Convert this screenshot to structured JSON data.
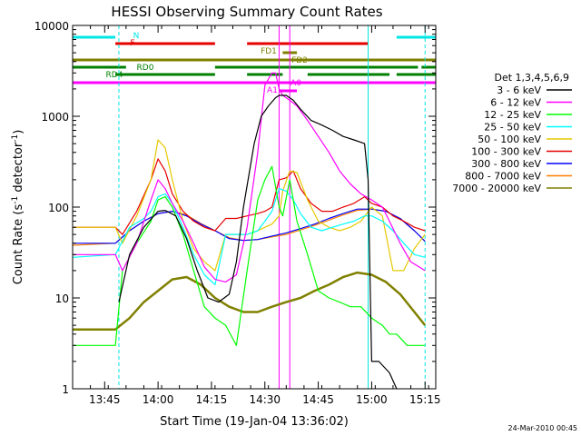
{
  "chart_data": {
    "type": "line",
    "title": "HESSI Observing Summary Count Rates",
    "xlabel": "Start Time (19-Jan-04 13:36:02)",
    "ylabel": "Count Rate (s⁻¹ detector⁻¹)",
    "ylabel_parts": {
      "main": "Count Rate (s",
      "exp1": "-1",
      "mid": " detector",
      "exp2": "-1",
      "end": ")"
    },
    "yscale": "log",
    "xlim": [
      "13:36",
      "15:18"
    ],
    "ylim": [
      1,
      10000
    ],
    "x_tick_labels": [
      "13:45",
      "14:00",
      "14:15",
      "14:30",
      "14:45",
      "15:00",
      "15:15"
    ],
    "y_tick_labels": [
      "1",
      "10",
      "100",
      "1000",
      "10000"
    ],
    "footer": "24-Mar-2010 00:45",
    "legend": {
      "title": "Det 1,3,4,5,6,9",
      "entries": [
        {
          "label": "3 - 6 keV",
          "color": "#000000"
        },
        {
          "label": "6 - 12 keV",
          "color": "#ff00ff"
        },
        {
          "label": "12 - 25 keV",
          "color": "#00ff00"
        },
        {
          "label": "25 - 50 keV",
          "color": "#00ffff"
        },
        {
          "label": "50 - 100 keV",
          "color": "#e6c800"
        },
        {
          "label": "100 - 300 keV",
          "color": "#e60000"
        },
        {
          "label": "300 - 800 keV",
          "color": "#0000ff"
        },
        {
          "label": "800 - 7000 keV",
          "color": "#ff8000"
        },
        {
          "label": "7000 - 20000 keV",
          "color": "#808000"
        }
      ]
    },
    "flag_bars": [
      {
        "label": "N",
        "color": "#00e5e5",
        "segments": [
          [
            "13:36",
            "13:48"
          ],
          [
            "15:07",
            "15:18"
          ]
        ]
      },
      {
        "label": "F",
        "color": "#e60000",
        "segments": [
          [
            "13:48",
            "14:16"
          ],
          [
            "14:25",
            "14:59"
          ]
        ]
      },
      {
        "label": "FD1",
        "color": "#808000",
        "segments": [
          [
            "14:35",
            "14:39"
          ]
        ]
      },
      {
        "label": "",
        "color": "#808000",
        "segments": [
          [
            "13:36",
            "15:18"
          ]
        ]
      },
      {
        "label": "FD2",
        "color": "#808000",
        "segments": [],
        "note": "label only"
      },
      {
        "label": "RD0",
        "color": "#008000",
        "segments": [
          [
            "13:36",
            "13:51"
          ],
          [
            "14:16",
            "15:13"
          ],
          [
            "15:14",
            "15:18"
          ]
        ]
      },
      {
        "label": "RD4",
        "color": "#008000",
        "segments": [
          [
            "13:48",
            "14:16"
          ],
          [
            "14:25",
            "14:35"
          ],
          [
            "14:42",
            "15:05"
          ],
          [
            "15:07",
            "15:18"
          ]
        ]
      },
      {
        "label": "A1",
        "color": "#ff00ff",
        "segments": [
          [
            "13:36",
            "15:18"
          ]
        ]
      },
      {
        "label": "A0",
        "color": "#ff00ff",
        "segments": [
          [
            "14:34",
            "14:39"
          ]
        ]
      }
    ],
    "vlines": [
      {
        "time": "13:36",
        "color": "#00e5e5",
        "style": "solid"
      },
      {
        "time": "13:49",
        "color": "#00e5e5",
        "style": "dashed"
      },
      {
        "time": "14:59",
        "color": "#00e5e5",
        "style": "solid"
      },
      {
        "time": "15:15",
        "color": "#00e5e5",
        "style": "dashed"
      },
      {
        "time": "14:34",
        "color": "#ff00ff",
        "style": "solid"
      },
      {
        "time": "14:37",
        "color": "#ff00ff",
        "style": "solid"
      }
    ],
    "series": [
      {
        "name": "3 - 6 keV",
        "color": "#000000",
        "x": [
          "13:49",
          "13:52",
          "13:56",
          "14:00",
          "14:02",
          "14:05",
          "14:08",
          "14:11",
          "14:14",
          "14:17",
          "14:20",
          "14:22",
          "14:24",
          "14:27",
          "14:29",
          "14:31",
          "14:33",
          "14:34",
          "14:36",
          "14:38",
          "14:40",
          "14:43",
          "14:46",
          "14:49",
          "14:52",
          "14:55",
          "14:58",
          "14:59",
          "15:00",
          "15:02",
          "15:05",
          "15:07"
        ],
        "y": [
          9,
          30,
          60,
          90,
          92,
          80,
          45,
          20,
          10,
          9,
          11,
          25,
          100,
          500,
          1000,
          1300,
          1600,
          1700,
          1700,
          1500,
          1200,
          900,
          800,
          700,
          600,
          550,
          500,
          200,
          2,
          2,
          1.5,
          1
        ]
      },
      {
        "name": "6 - 12 keV",
        "color": "#ff00ff",
        "x": [
          "13:36",
          "13:48",
          "13:50",
          "13:54",
          "13:58",
          "14:00",
          "14:02",
          "14:04",
          "14:07",
          "14:10",
          "14:13",
          "14:16",
          "14:19",
          "14:22",
          "14:25",
          "14:28",
          "14:30",
          "14:32",
          "14:33",
          "14:34",
          "14:35",
          "14:37",
          "14:39",
          "14:42",
          "14:45",
          "14:48",
          "14:51",
          "14:54",
          "14:57",
          "15:00",
          "15:03",
          "15:05",
          "15:08",
          "15:11",
          "15:15"
        ],
        "y": [
          30,
          30,
          20,
          40,
          120,
          200,
          160,
          110,
          70,
          40,
          22,
          16,
          15,
          18,
          60,
          400,
          2200,
          3000,
          3000,
          2000,
          1700,
          1500,
          1300,
          900,
          600,
          400,
          250,
          180,
          140,
          120,
          100,
          70,
          40,
          25,
          20
        ]
      },
      {
        "name": "12 - 25 keV",
        "color": "#00ff00",
        "x": [
          "13:36",
          "13:48",
          "13:50",
          "13:54",
          "13:58",
          "14:00",
          "14:02",
          "14:04",
          "14:07",
          "14:10",
          "14:13",
          "14:16",
          "14:19",
          "14:22",
          "14:25",
          "14:28",
          "14:30",
          "14:32",
          "14:34",
          "14:35",
          "14:37",
          "14:39",
          "14:42",
          "14:45",
          "14:48",
          "14:51",
          "14:54",
          "14:57",
          "15:00",
          "15:03",
          "15:05",
          "15:07",
          "15:10",
          "15:13",
          "15:15"
        ],
        "y": [
          3,
          3,
          20,
          40,
          70,
          120,
          130,
          100,
          50,
          20,
          8,
          6,
          5,
          3,
          20,
          120,
          200,
          280,
          100,
          80,
          200,
          70,
          30,
          12,
          10,
          9,
          8,
          8,
          6,
          5,
          4,
          4,
          3,
          3,
          3
        ]
      },
      {
        "name": "25 - 50 keV",
        "color": "#00ffff",
        "x": [
          "13:36",
          "13:48",
          "13:52",
          "13:56",
          "13:58",
          "14:00",
          "14:02",
          "14:04",
          "14:07",
          "14:10",
          "14:13",
          "14:16",
          "14:19",
          "14:22",
          "14:25",
          "14:28",
          "14:30",
          "14:32",
          "14:34",
          "14:36",
          "14:38",
          "14:40",
          "14:43",
          "14:46",
          "14:49",
          "14:52",
          "14:55",
          "14:58",
          "15:00",
          "15:03",
          "15:06",
          "15:09",
          "15:12",
          "15:15"
        ],
        "y": [
          28,
          30,
          60,
          75,
          90,
          130,
          140,
          110,
          60,
          30,
          18,
          14,
          50,
          50,
          50,
          55,
          70,
          90,
          160,
          150,
          120,
          85,
          60,
          55,
          60,
          65,
          70,
          80,
          80,
          70,
          55,
          40,
          30,
          28
        ]
      },
      {
        "name": "50 - 100 keV",
        "color": "#e6c800",
        "x": [
          "13:36",
          "13:48",
          "13:50",
          "13:54",
          "13:58",
          "14:00",
          "14:02",
          "14:04",
          "14:07",
          "14:10",
          "14:13",
          "14:16",
          "14:19",
          "14:22",
          "14:25",
          "14:28",
          "14:30",
          "14:32",
          "14:34",
          "14:35",
          "14:37",
          "14:39",
          "14:42",
          "14:45",
          "14:48",
          "14:51",
          "14:54",
          "14:57",
          "15:00",
          "15:03",
          "15:06",
          "15:09",
          "15:12",
          "15:15"
        ],
        "y": [
          60,
          60,
          40,
          80,
          200,
          550,
          450,
          200,
          70,
          35,
          25,
          20,
          50,
          50,
          50,
          55,
          60,
          65,
          80,
          150,
          250,
          240,
          120,
          70,
          60,
          55,
          60,
          70,
          100,
          80,
          20,
          20,
          35,
          50
        ]
      },
      {
        "name": "100 - 300 keV",
        "color": "#e60000",
        "x": [
          "13:36",
          "13:48",
          "13:50",
          "13:54",
          "13:58",
          "14:00",
          "14:02",
          "14:04",
          "14:07",
          "14:10",
          "14:13",
          "14:16",
          "14:19",
          "14:22",
          "14:25",
          "14:28",
          "14:30",
          "14:32",
          "14:34",
          "14:36",
          "14:38",
          "14:40",
          "14:43",
          "14:46",
          "14:49",
          "14:52",
          "14:55",
          "14:58",
          "15:00",
          "15:03",
          "15:06",
          "15:09",
          "15:12",
          "15:15"
        ],
        "y": [
          60,
          60,
          50,
          90,
          200,
          340,
          250,
          140,
          90,
          70,
          60,
          55,
          75,
          75,
          80,
          85,
          90,
          100,
          200,
          210,
          250,
          160,
          110,
          90,
          90,
          100,
          110,
          130,
          110,
          100,
          80,
          70,
          60,
          55
        ]
      },
      {
        "name": "300 - 800 keV",
        "color": "#0000ff",
        "x": [
          "13:36",
          "13:48",
          "13:52",
          "13:56",
          "14:00",
          "14:04",
          "14:08",
          "14:12",
          "14:16",
          "14:20",
          "14:24",
          "14:28",
          "14:32",
          "14:36",
          "14:40",
          "14:44",
          "14:48",
          "14:52",
          "14:56",
          "15:00",
          "15:04",
          "15:08",
          "15:12",
          "15:15"
        ],
        "y": [
          40,
          40,
          55,
          70,
          85,
          90,
          80,
          65,
          55,
          45,
          43,
          44,
          48,
          52,
          58,
          65,
          75,
          85,
          95,
          95,
          90,
          75,
          55,
          42
        ]
      },
      {
        "name": "800 - 7000 keV",
        "color": "#ff8000",
        "x": [
          "13:36",
          "13:48",
          "13:52",
          "13:56",
          "14:00",
          "14:04",
          "14:08",
          "14:12",
          "14:16",
          "14:20",
          "14:24",
          "14:28",
          "14:32",
          "14:36",
          "14:40",
          "14:44",
          "14:48",
          "14:52",
          "14:56",
          "15:00",
          "15:04",
          "15:08",
          "15:12",
          "15:15"
        ],
        "y": [
          38,
          40,
          55,
          70,
          85,
          90,
          82,
          66,
          55,
          46,
          43,
          44,
          47,
          50,
          56,
          63,
          72,
          82,
          92,
          95,
          90,
          75,
          55,
          42
        ]
      },
      {
        "name": "7000 - 20000 keV",
        "color": "#808000",
        "x": [
          "13:36",
          "13:48",
          "13:52",
          "13:56",
          "14:00",
          "14:04",
          "14:08",
          "14:12",
          "14:16",
          "14:20",
          "14:24",
          "14:28",
          "14:32",
          "14:36",
          "14:40",
          "14:44",
          "14:48",
          "14:52",
          "14:56",
          "15:00",
          "15:04",
          "15:08",
          "15:12",
          "15:15"
        ],
        "y": [
          4.5,
          4.5,
          6,
          9,
          12,
          16,
          17,
          14,
          10,
          8,
          7,
          7,
          8,
          9,
          10,
          12,
          14,
          17,
          19,
          18,
          15,
          11,
          7,
          5
        ]
      }
    ]
  }
}
